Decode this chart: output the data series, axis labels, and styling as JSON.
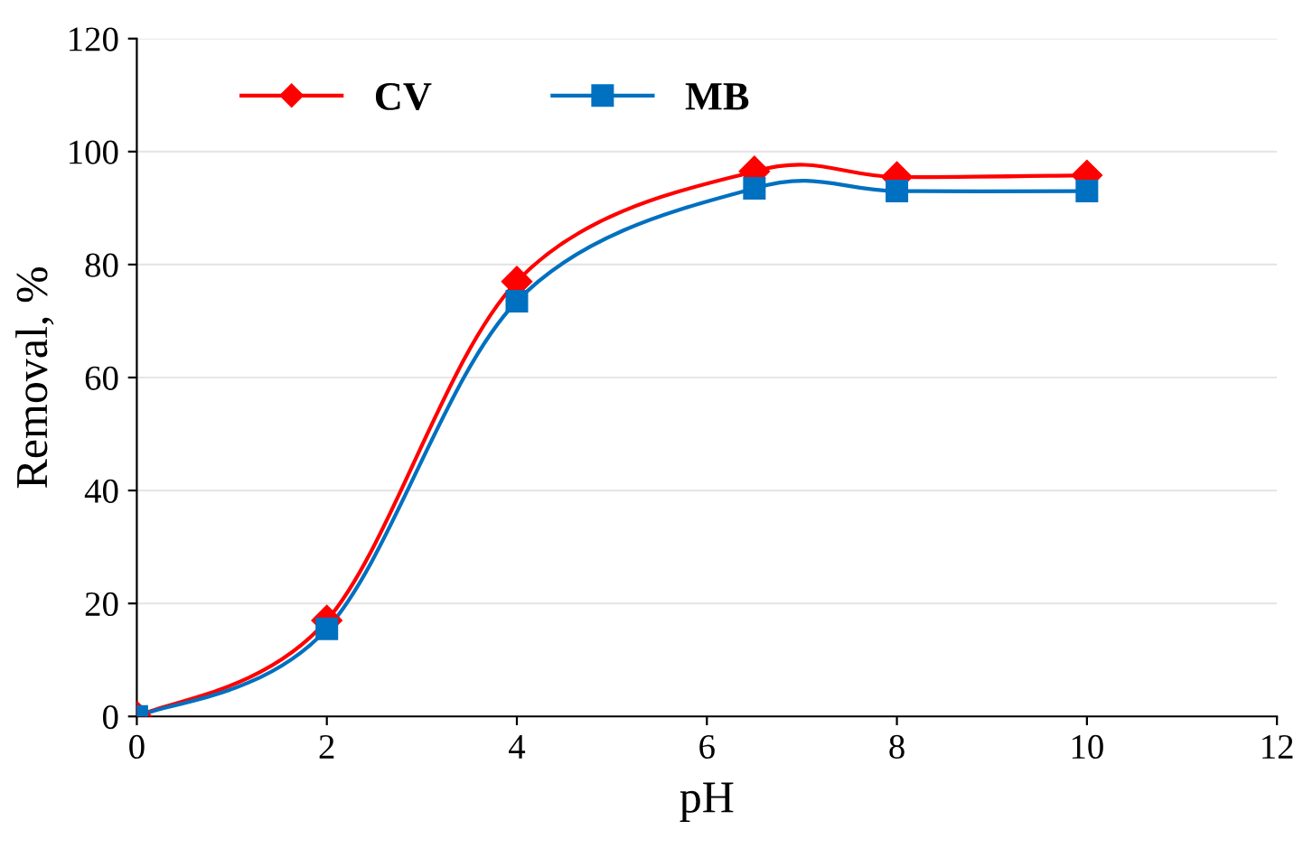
{
  "chart_data": {
    "type": "line",
    "xlabel": "pH",
    "ylabel": "Removal, %",
    "x": [
      0,
      2,
      4,
      6.5,
      8,
      10
    ],
    "series": [
      {
        "name": "CV",
        "color": "#ff0000",
        "marker": "diamond",
        "values": [
          0,
          17,
          77,
          96.5,
          95.5,
          95.8
        ]
      },
      {
        "name": "MB",
        "color": "#0070c0",
        "marker": "square",
        "values": [
          0,
          15.5,
          73.5,
          93.5,
          93,
          93
        ]
      }
    ],
    "xlim": [
      0,
      12
    ],
    "xticks": [
      0,
      2,
      4,
      6,
      8,
      10,
      12
    ],
    "ylim": [
      0,
      120
    ],
    "yticks": [
      0,
      20,
      40,
      60,
      80,
      100,
      120
    ],
    "grid": "y",
    "legend": "top left",
    "line_style": "solid"
  }
}
